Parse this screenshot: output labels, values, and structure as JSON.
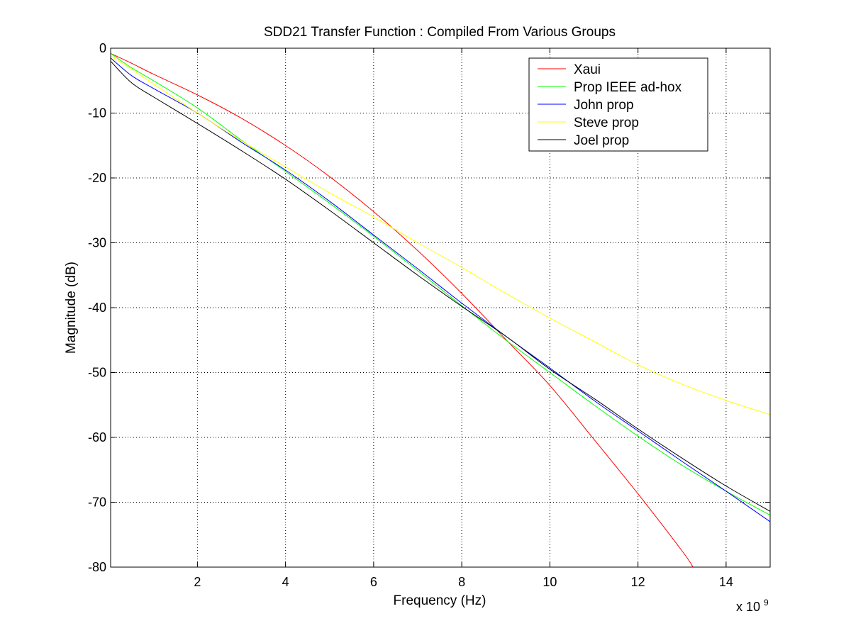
{
  "chart_data": {
    "type": "line",
    "title": "SDD21 Transfer Function : Compiled From Various Groups",
    "xlabel": "Frequency (Hz)",
    "ylabel": "Magnitude (dB)",
    "x_multiplier_base": "x 10",
    "x_multiplier_exponent": "9",
    "xlim": [
      0.03,
      15
    ],
    "ylim": [
      -80,
      0
    ],
    "xticks": [
      2,
      4,
      6,
      8,
      10,
      12,
      14
    ],
    "xtick_labels": [
      "2",
      "4",
      "6",
      "8",
      "10",
      "12",
      "14"
    ],
    "yticks": [
      0,
      -10,
      -20,
      -30,
      -40,
      -50,
      -60,
      -70,
      -80
    ],
    "ytick_labels": [
      "0",
      "-10",
      "-20",
      "-30",
      "-40",
      "-50",
      "-60",
      "-70",
      "-80"
    ],
    "grid": "on (dotted)",
    "legend_position": "top-right",
    "series": [
      {
        "name": "Xaui",
        "color": "#ff0000",
        "x": [
          0.03,
          0.5,
          1,
          2,
          3,
          4,
          5,
          6,
          7,
          8,
          9,
          10,
          11,
          12,
          13,
          13.25
        ],
        "y": [
          -0.8,
          -2.3,
          -4.0,
          -7.2,
          -10.8,
          -15.0,
          -19.8,
          -25.2,
          -31.2,
          -37.8,
          -44.9,
          -52.0,
          -60.3,
          -68.7,
          -77.5,
          -80.0
        ]
      },
      {
        "name": "Prop IEEE ad-hox",
        "color": "#00ff00",
        "x": [
          0.03,
          0.5,
          1,
          2,
          3,
          4,
          5,
          6,
          7,
          8,
          9,
          10,
          11,
          12,
          13,
          14,
          15
        ],
        "y": [
          -0.8,
          -3.0,
          -5.0,
          -9.2,
          -14.2,
          -19.0,
          -23.9,
          -29.0,
          -34.3,
          -39.7,
          -45.0,
          -50.0,
          -55.0,
          -59.8,
          -64.3,
          -68.3,
          -72.0
        ]
      },
      {
        "name": "John prop",
        "color": "#0000ff",
        "x": [
          0.03,
          0.5,
          1,
          2,
          3,
          4,
          5,
          6,
          7,
          8,
          9,
          10,
          11,
          12,
          13,
          14,
          15
        ],
        "y": [
          -1.5,
          -4.2,
          -6.2,
          -10.0,
          -14.5,
          -18.8,
          -23.6,
          -28.8,
          -34.0,
          -39.3,
          -44.4,
          -49.3,
          -54.3,
          -59.0,
          -63.7,
          -68.3,
          -73.0
        ]
      },
      {
        "name": "Steve prop",
        "color": "#ffff00",
        "x": [
          0.03,
          0.5,
          1,
          2,
          3,
          4,
          5,
          6,
          7,
          8,
          9,
          10,
          11,
          12,
          13,
          14,
          15
        ],
        "y": [
          -1.2,
          -3.2,
          -5.5,
          -10.0,
          -14.3,
          -18.3,
          -22.3,
          -26.0,
          -30.0,
          -33.8,
          -37.8,
          -41.6,
          -45.2,
          -48.8,
          -51.8,
          -54.3,
          -56.5
        ]
      },
      {
        "name": "Joel prop",
        "color": "#000000",
        "x": [
          0.03,
          0.5,
          1,
          2,
          3,
          4,
          5,
          6,
          7,
          8,
          9,
          10,
          11,
          12,
          13,
          14,
          15
        ],
        "y": [
          -2.0,
          -5.3,
          -7.5,
          -11.6,
          -15.8,
          -20.2,
          -25.0,
          -30.0,
          -35.0,
          -39.8,
          -44.4,
          -49.5,
          -54.0,
          -58.7,
          -63.2,
          -67.5,
          -71.4
        ]
      }
    ]
  }
}
